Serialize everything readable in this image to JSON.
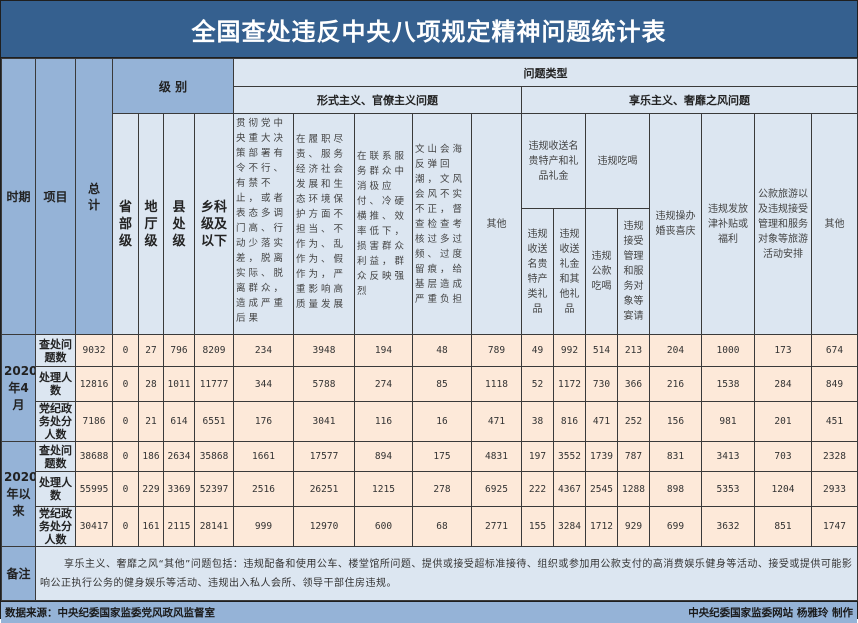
{
  "title": "全国查处违反中央八项规定精神问题统计表",
  "headers": {
    "period": "时期",
    "item": "项目",
    "total": "总计",
    "level": "级 别",
    "levels": [
      "省部级",
      "地厅级",
      "县处级",
      "乡科级及以下"
    ],
    "problem_type": "问题类型",
    "formalism": "形式主义、官僚主义问题",
    "formalism_cols": [
      "贯彻党中央重大决策部署有令不行、有禁不止，或者表态多调门高、行动少落实差，脱离实际、脱离群众，造成严重后果",
      "在履职尽责、服务经济社会发展和生态环境保护方面不担当、不作为、乱作为、假作为，严重影响高质量发展",
      "在联系服务群众中消极应付、冷硬横推、效率低下，损害群众利益，群众反映强烈",
      "文山会海反弹回潮，文风会风不实不正，督查检查考核过多过频、过度留痕，给基层造成严重负担",
      "其他"
    ],
    "hedonism": "享乐主义、奢靡之风问题",
    "gifts_group": "违规收送名贵特产和礼品礼金",
    "gifts_cols": [
      "违规收送名贵特产类礼品",
      "违规收送礼金和其他礼品"
    ],
    "dining_group": "违规吃喝",
    "dining_cols": [
      "违规公款吃喝",
      "违规接受管理和服务对象等宴请"
    ],
    "other_hedonism_cols": [
      "违规操办婚丧喜庆",
      "违规发放津补贴或福利",
      "公款旅游以及违规接受管理和服务对象等旅游活动安排",
      "其他"
    ]
  },
  "periods": [
    {
      "label": "2020年4月",
      "rows": [
        {
          "item": "查处问题数",
          "values": [
            "9032",
            "0",
            "27",
            "796",
            "8209",
            "234",
            "3948",
            "194",
            "48",
            "789",
            "49",
            "992",
            "514",
            "213",
            "204",
            "1000",
            "173",
            "674"
          ]
        },
        {
          "item": "处理人数",
          "values": [
            "12816",
            "0",
            "28",
            "1011",
            "11777",
            "344",
            "5788",
            "274",
            "85",
            "1118",
            "52",
            "1172",
            "730",
            "366",
            "216",
            "1538",
            "284",
            "849"
          ]
        },
        {
          "item": "党纪政务处分人数",
          "values": [
            "7186",
            "0",
            "21",
            "614",
            "6551",
            "176",
            "3041",
            "116",
            "16",
            "471",
            "38",
            "816",
            "471",
            "252",
            "156",
            "981",
            "201",
            "451"
          ]
        }
      ]
    },
    {
      "label": "2020年以来",
      "rows": [
        {
          "item": "查处问题数",
          "values": [
            "38688",
            "0",
            "186",
            "2634",
            "35868",
            "1661",
            "17577",
            "894",
            "175",
            "4831",
            "197",
            "3552",
            "1739",
            "787",
            "831",
            "3413",
            "703",
            "2328"
          ]
        },
        {
          "item": "处理人数",
          "values": [
            "55995",
            "0",
            "229",
            "3369",
            "52397",
            "2516",
            "26251",
            "1215",
            "278",
            "6925",
            "222",
            "4367",
            "2545",
            "1288",
            "898",
            "5353",
            "1204",
            "2933"
          ]
        },
        {
          "item": "党纪政务处分人数",
          "values": [
            "30417",
            "0",
            "161",
            "2115",
            "28141",
            "999",
            "12970",
            "600",
            "68",
            "2771",
            "155",
            "3284",
            "1712",
            "929",
            "699",
            "3632",
            "851",
            "1747"
          ]
        }
      ]
    }
  ],
  "remarks": {
    "label": "备注",
    "text": "享乐主义、奢靡之风“其他”问题包括：违规配备和使用公车、楼堂馆所问题、提供或接受超标准接待、组织或参加用公款支付的高消费娱乐健身等活动、接受或提供可能影响公正执行公务的健身娱乐等活动、违规出入私人会所、领导干部住房违规。"
  },
  "footer": {
    "source": "数据来源：中央纪委国家监委党风政风监督室",
    "credit": "中央纪委国家监委网站 杨雅玲 制作"
  },
  "colors": {
    "title_bg": "#35608f",
    "header_dark": "#95b3d7",
    "header_light": "#dce6f1",
    "data_bg": "#fde9d9"
  }
}
